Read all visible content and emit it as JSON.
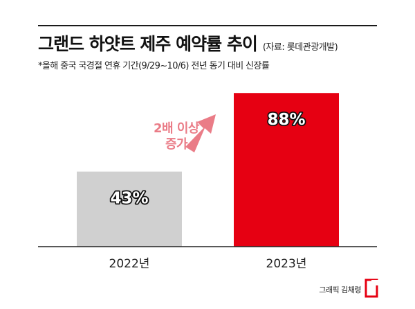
{
  "header": {
    "title": "그랜드 하얏트 제주 예약률 추이",
    "source": "(자료: 롯데관광개발)",
    "note": "*올해 중국 국경절 연휴 기간(9/29~10/6) 전년 동기 대비 신장률"
  },
  "callout": {
    "line1": "2배 이상",
    "line2": "증가"
  },
  "footer": {
    "credit": "그래픽 김채령"
  },
  "colors": {
    "bar_2022": "#d0d0d0",
    "bar_2023": "#e60012",
    "callout": "#ea7c87",
    "axis": "#222222"
  },
  "chart_data": {
    "type": "bar",
    "categories": [
      "2022년",
      "2023년"
    ],
    "values": [
      43,
      88
    ],
    "data_labels": [
      "43%",
      "88%"
    ],
    "title": "그랜드 하얏트 제주 예약률 추이",
    "xlabel": "",
    "ylabel": "",
    "ylim": [
      0,
      100
    ],
    "grid": false,
    "legend": "none",
    "annotations": [
      "2배 이상 증가"
    ]
  }
}
